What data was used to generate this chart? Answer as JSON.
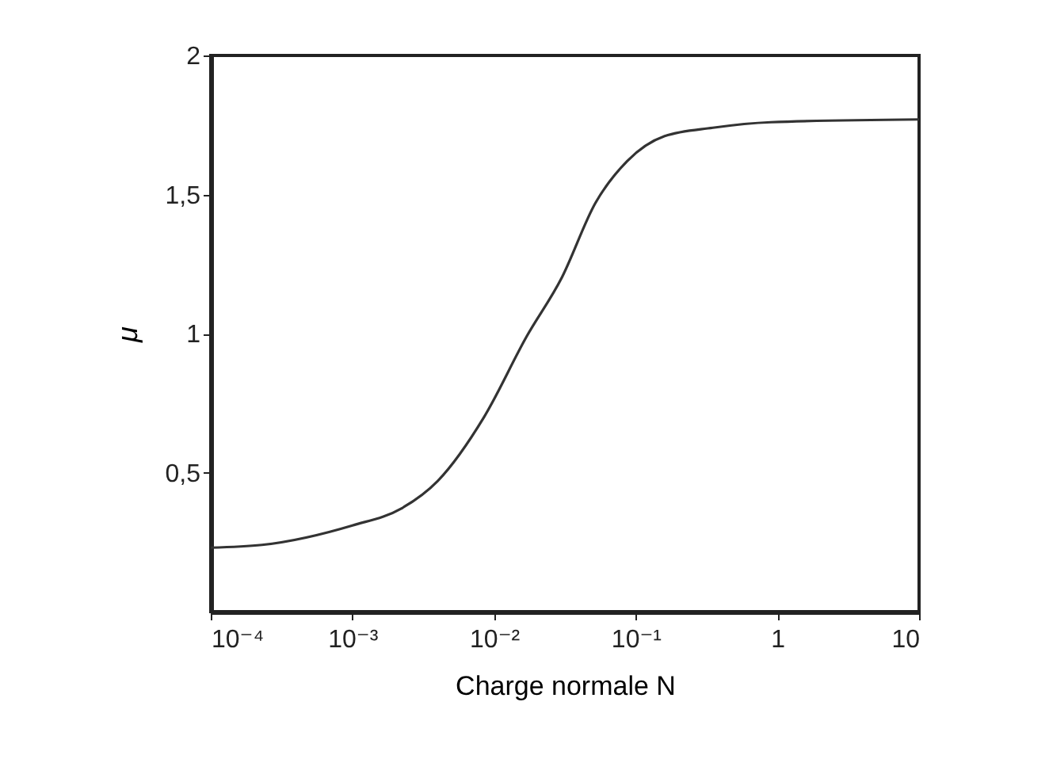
{
  "chart_data": {
    "type": "line",
    "xlabel": "Charge normale N",
    "ylabel": "μ",
    "log": "x",
    "x": [
      0.0001,
      0.00023,
      0.001,
      0.0022,
      0.004,
      0.0085,
      0.017,
      0.03,
      0.052,
      0.087,
      0.16,
      0.35,
      0.9,
      10
    ],
    "series": [
      {
        "color": "#333333",
        "values": [
          0.23,
          0.24,
          0.31,
          0.37,
          0.47,
          0.7,
          0.99,
          1.2,
          1.47,
          1.62,
          1.71,
          1.74,
          1.76,
          1.77
        ]
      }
    ],
    "xlim": [
      0.0001,
      10
    ],
    "xticks": [
      {
        "value": 0.0001,
        "label": "10⁻⁴"
      },
      {
        "value": 0.001,
        "label": "10⁻³"
      },
      {
        "value": 0.01,
        "label": "10⁻²"
      },
      {
        "value": 0.1,
        "label": "10⁻¹"
      },
      1,
      10
    ],
    "ylim": [
      0,
      2
    ],
    "yticks": [
      {
        "value": 0.5,
        "label": "0,5"
      },
      1,
      {
        "value": 1.5,
        "label": "1,5"
      },
      2
    ],
    "grid": false,
    "legend": false,
    "line_style": "solid"
  }
}
